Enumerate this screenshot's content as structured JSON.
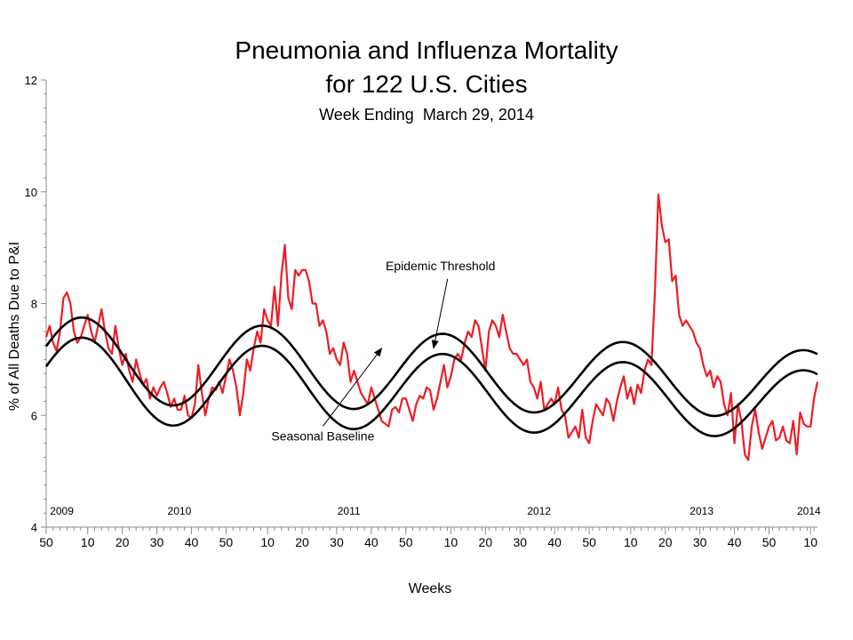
{
  "chart_data": {
    "type": "line",
    "title_lines": [
      "Pneumonia and Influenza Mortality",
      "for 122 U.S. Cities"
    ],
    "subtitle": "Week Ending  March 29, 2014",
    "ylabel": "% of All Deaths Due to P&I",
    "xlabel": "Weeks",
    "ylim": [
      4,
      12
    ],
    "y_ticks": [
      "4",
      "6",
      "8",
      "10",
      "12"
    ],
    "y_tick_values": [
      4,
      6,
      8,
      10,
      12
    ],
    "x_range": [
      0,
      223
    ],
    "x_ticks": [
      {
        "label": "50",
        "x": 0
      },
      {
        "label": "10",
        "x": 12
      },
      {
        "label": "20",
        "x": 22
      },
      {
        "label": "30",
        "x": 32
      },
      {
        "label": "40",
        "x": 42
      },
      {
        "label": "50",
        "x": 52
      },
      {
        "label": "10",
        "x": 64
      },
      {
        "label": "20",
        "x": 74
      },
      {
        "label": "30",
        "x": 84
      },
      {
        "label": "40",
        "x": 94
      },
      {
        "label": "50",
        "x": 104
      },
      {
        "label": "10",
        "x": 117
      },
      {
        "label": "20",
        "x": 127
      },
      {
        "label": "30",
        "x": 137
      },
      {
        "label": "40",
        "x": 147
      },
      {
        "label": "50",
        "x": 157
      },
      {
        "label": "10",
        "x": 169
      },
      {
        "label": "20",
        "x": 179
      },
      {
        "label": "30",
        "x": 189
      },
      {
        "label": "40",
        "x": 199
      },
      {
        "label": "50",
        "x": 209
      },
      {
        "label": "10",
        "x": 221
      }
    ],
    "year_labels": [
      {
        "label": "2009",
        "x": 4
      },
      {
        "label": "2010",
        "x": 38
      },
      {
        "label": "2011",
        "x": 87
      },
      {
        "label": "2012",
        "x": 142
      },
      {
        "label": "2013",
        "x": 189
      },
      {
        "label": "2014",
        "x": 220
      }
    ],
    "annotations": [
      {
        "text": "Epidemic Threshold",
        "x": 114,
        "y": 8.6,
        "arrow_to": [
          112,
          7.2
        ]
      },
      {
        "text": "Seasonal Baseline",
        "x": 80,
        "y": 5.55,
        "arrow_to": [
          97,
          7.2
        ]
      }
    ],
    "series": [
      {
        "role": "observed",
        "color": "#ee1c24",
        "points": [
          [
            0,
            7.4
          ],
          [
            1,
            7.6
          ],
          [
            2,
            7.3
          ],
          [
            3,
            7.15
          ],
          [
            4,
            7.5
          ],
          [
            5,
            8.1
          ],
          [
            6,
            8.2
          ],
          [
            7,
            8.0
          ],
          [
            8,
            7.5
          ],
          [
            9,
            7.3
          ],
          [
            10,
            7.4
          ],
          [
            11,
            7.6
          ],
          [
            12,
            7.8
          ],
          [
            13,
            7.5
          ],
          [
            14,
            7.3
          ],
          [
            15,
            7.6
          ],
          [
            16,
            7.9
          ],
          [
            17,
            7.5
          ],
          [
            18,
            7.2
          ],
          [
            19,
            7.1
          ],
          [
            20,
            7.6
          ],
          [
            21,
            7.2
          ],
          [
            22,
            6.9
          ],
          [
            23,
            7.1
          ],
          [
            24,
            6.8
          ],
          [
            25,
            6.6
          ],
          [
            26,
            7.0
          ],
          [
            27,
            6.75
          ],
          [
            28,
            6.55
          ],
          [
            29,
            6.65
          ],
          [
            30,
            6.3
          ],
          [
            31,
            6.5
          ],
          [
            32,
            6.35
          ],
          [
            33,
            6.5
          ],
          [
            34,
            6.6
          ],
          [
            35,
            6.4
          ],
          [
            36,
            6.15
          ],
          [
            37,
            6.3
          ],
          [
            38,
            6.1
          ],
          [
            39,
            6.1
          ],
          [
            40,
            6.35
          ],
          [
            41,
            6.0
          ],
          [
            42,
            5.95
          ],
          [
            43,
            6.2
          ],
          [
            44,
            6.9
          ],
          [
            45,
            6.4
          ],
          [
            46,
            6.0
          ],
          [
            47,
            6.3
          ],
          [
            48,
            6.5
          ],
          [
            49,
            6.45
          ],
          [
            50,
            6.6
          ],
          [
            51,
            6.4
          ],
          [
            52,
            6.7
          ],
          [
            53,
            7.0
          ],
          [
            54,
            6.8
          ],
          [
            55,
            6.5
          ],
          [
            56,
            6.0
          ],
          [
            57,
            6.4
          ],
          [
            58,
            7.0
          ],
          [
            59,
            6.8
          ],
          [
            60,
            7.2
          ],
          [
            61,
            7.5
          ],
          [
            62,
            7.3
          ],
          [
            63,
            7.9
          ],
          [
            64,
            7.7
          ],
          [
            65,
            7.6
          ],
          [
            66,
            8.3
          ],
          [
            67,
            7.6
          ],
          [
            68,
            8.5
          ],
          [
            69,
            9.05
          ],
          [
            70,
            8.1
          ],
          [
            71,
            7.9
          ],
          [
            72,
            8.6
          ],
          [
            73,
            8.5
          ],
          [
            74,
            8.6
          ],
          [
            75,
            8.6
          ],
          [
            76,
            8.4
          ],
          [
            77,
            8.0
          ],
          [
            78,
            8.0
          ],
          [
            79,
            7.6
          ],
          [
            80,
            7.7
          ],
          [
            81,
            7.5
          ],
          [
            82,
            7.1
          ],
          [
            83,
            7.2
          ],
          [
            84,
            7.0
          ],
          [
            85,
            6.9
          ],
          [
            86,
            7.3
          ],
          [
            87,
            7.1
          ],
          [
            88,
            6.6
          ],
          [
            89,
            6.8
          ],
          [
            90,
            6.6
          ],
          [
            91,
            6.4
          ],
          [
            92,
            6.3
          ],
          [
            93,
            6.2
          ],
          [
            94,
            6.5
          ],
          [
            95,
            6.3
          ],
          [
            96,
            6.1
          ],
          [
            97,
            5.9
          ],
          [
            98,
            5.85
          ],
          [
            99,
            5.8
          ],
          [
            100,
            6.1
          ],
          [
            101,
            6.15
          ],
          [
            102,
            6.05
          ],
          [
            103,
            6.3
          ],
          [
            104,
            6.3
          ],
          [
            105,
            6.1
          ],
          [
            106,
            5.9
          ],
          [
            107,
            6.2
          ],
          [
            108,
            6.35
          ],
          [
            109,
            6.3
          ],
          [
            110,
            6.5
          ],
          [
            111,
            6.45
          ],
          [
            112,
            6.1
          ],
          [
            113,
            6.3
          ],
          [
            114,
            6.6
          ],
          [
            115,
            6.9
          ],
          [
            116,
            6.5
          ],
          [
            117,
            6.7
          ],
          [
            118,
            7.0
          ],
          [
            119,
            7.1
          ],
          [
            120,
            7.0
          ],
          [
            121,
            7.3
          ],
          [
            122,
            7.5
          ],
          [
            123,
            7.4
          ],
          [
            124,
            7.7
          ],
          [
            125,
            7.6
          ],
          [
            126,
            7.2
          ],
          [
            127,
            6.8
          ],
          [
            128,
            7.5
          ],
          [
            129,
            7.7
          ],
          [
            130,
            7.6
          ],
          [
            131,
            7.4
          ],
          [
            132,
            7.8
          ],
          [
            133,
            7.5
          ],
          [
            134,
            7.2
          ],
          [
            135,
            7.1
          ],
          [
            136,
            7.1
          ],
          [
            137,
            7.0
          ],
          [
            138,
            6.9
          ],
          [
            139,
            7.0
          ],
          [
            140,
            6.6
          ],
          [
            141,
            6.5
          ],
          [
            142,
            6.3
          ],
          [
            143,
            6.6
          ],
          [
            144,
            6.1
          ],
          [
            145,
            6.2
          ],
          [
            146,
            6.3
          ],
          [
            147,
            6.2
          ],
          [
            148,
            6.5
          ],
          [
            149,
            6.1
          ],
          [
            150,
            6.0
          ],
          [
            151,
            5.6
          ],
          [
            152,
            5.7
          ],
          [
            153,
            5.8
          ],
          [
            154,
            5.6
          ],
          [
            155,
            6.1
          ],
          [
            156,
            5.6
          ],
          [
            157,
            5.5
          ],
          [
            158,
            5.9
          ],
          [
            159,
            6.2
          ],
          [
            160,
            6.1
          ],
          [
            161,
            6.0
          ],
          [
            162,
            6.3
          ],
          [
            163,
            6.2
          ],
          [
            164,
            5.9
          ],
          [
            165,
            6.25
          ],
          [
            166,
            6.5
          ],
          [
            167,
            6.7
          ],
          [
            168,
            6.3
          ],
          [
            169,
            6.5
          ],
          [
            170,
            6.2
          ],
          [
            171,
            6.55
          ],
          [
            172,
            6.4
          ],
          [
            173,
            6.8
          ],
          [
            174,
            7.0
          ],
          [
            175,
            6.9
          ],
          [
            176,
            8.2
          ],
          [
            177,
            9.95
          ],
          [
            178,
            9.4
          ],
          [
            179,
            9.1
          ],
          [
            180,
            9.15
          ],
          [
            181,
            8.4
          ],
          [
            182,
            8.5
          ],
          [
            183,
            7.8
          ],
          [
            184,
            7.6
          ],
          [
            185,
            7.7
          ],
          [
            186,
            7.6
          ],
          [
            187,
            7.5
          ],
          [
            188,
            7.3
          ],
          [
            189,
            7.2
          ],
          [
            190,
            6.9
          ],
          [
            191,
            6.7
          ],
          [
            192,
            6.8
          ],
          [
            193,
            6.5
          ],
          [
            194,
            6.7
          ],
          [
            195,
            6.6
          ],
          [
            196,
            6.2
          ],
          [
            197,
            6.0
          ],
          [
            198,
            6.4
          ],
          [
            199,
            5.5
          ],
          [
            200,
            6.2
          ],
          [
            201,
            5.9
          ],
          [
            202,
            5.3
          ],
          [
            203,
            5.2
          ],
          [
            204,
            5.8
          ],
          [
            205,
            6.1
          ],
          [
            206,
            5.7
          ],
          [
            207,
            5.4
          ],
          [
            208,
            5.6
          ],
          [
            209,
            5.8
          ],
          [
            210,
            5.9
          ],
          [
            211,
            5.55
          ],
          [
            212,
            5.6
          ],
          [
            213,
            5.8
          ],
          [
            214,
            5.55
          ],
          [
            215,
            5.5
          ],
          [
            216,
            5.9
          ],
          [
            217,
            5.3
          ],
          [
            218,
            6.05
          ],
          [
            219,
            5.85
          ],
          [
            220,
            5.8
          ],
          [
            221,
            5.8
          ],
          [
            222,
            6.3
          ],
          [
            223,
            6.6
          ]
        ]
      },
      {
        "role": "epidemic-threshold",
        "color": "#000000",
        "points": []
      },
      {
        "role": "seasonal-baseline",
        "color": "#000000",
        "points": []
      }
    ]
  }
}
